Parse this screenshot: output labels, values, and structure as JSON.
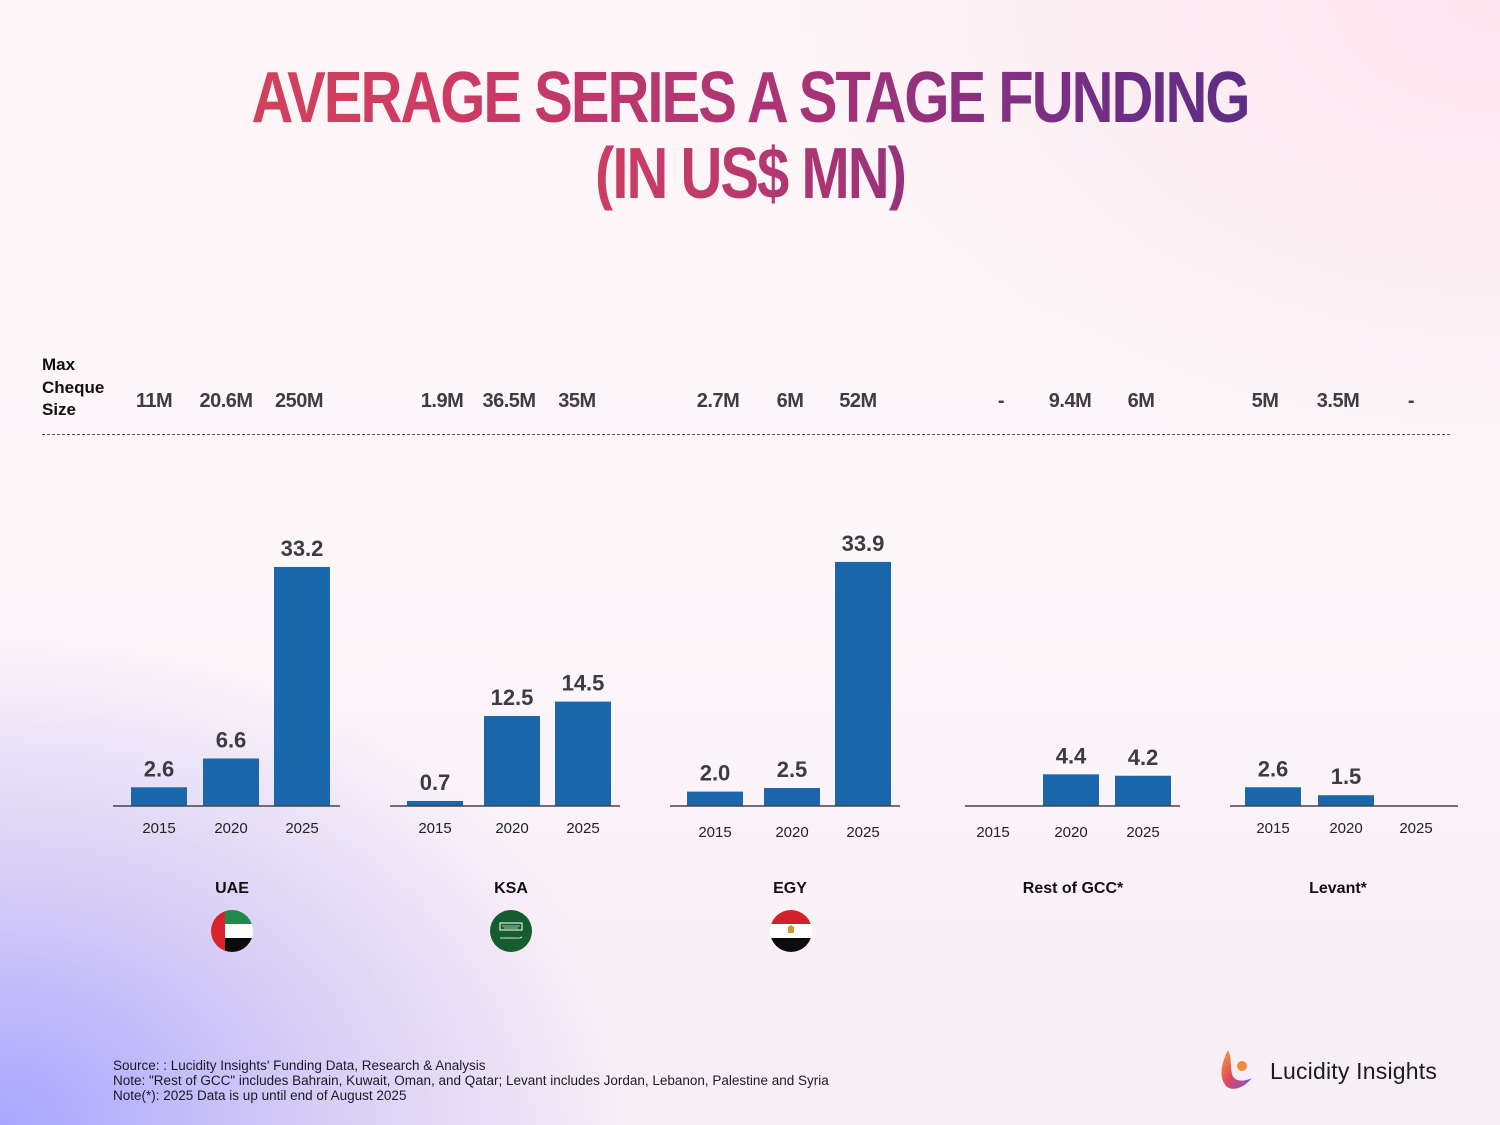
{
  "title": {
    "line1": "AVERAGE SERIES A STAGE FUNDING",
    "line2": "(IN US$ MN)"
  },
  "max_cheque": {
    "label_lines": [
      "Max",
      "Cheque",
      "Size"
    ],
    "groups": [
      {
        "region": "UAE",
        "values": [
          "11M",
          "20.6M",
          "250M"
        ]
      },
      {
        "region": "KSA",
        "values": [
          "1.9M",
          "36.5M",
          "35M"
        ]
      },
      {
        "region": "EGY",
        "values": [
          "2.7M",
          "6M",
          "52M"
        ]
      },
      {
        "region": "Rest of GCC*",
        "values": [
          "-",
          "9.4M",
          "6M"
        ]
      },
      {
        "region": "Levant*",
        "values": [
          "5M",
          "3.5M",
          "-"
        ]
      }
    ]
  },
  "chart_data": {
    "type": "bar",
    "title": "AVERAGE SERIES A STAGE FUNDING (IN US$ MN)",
    "xlabel": "",
    "ylabel": "US$ Mn",
    "ylim": [
      0,
      35
    ],
    "grid": false,
    "legend": "none",
    "bar_color": "#1b67ab",
    "categories": [
      "2015",
      "2020",
      "2025"
    ],
    "groups": [
      {
        "name": "UAE",
        "flag": "uae-flag-icon",
        "values": [
          2.6,
          6.6,
          33.2
        ],
        "labels": [
          "2.6",
          "6.6",
          "33.2"
        ]
      },
      {
        "name": "KSA",
        "flag": "ksa-flag-icon",
        "values": [
          0.7,
          12.5,
          14.5
        ],
        "labels": [
          "0.7",
          "12.5",
          "14.5"
        ]
      },
      {
        "name": "EGY",
        "flag": "egypt-flag-icon",
        "values": [
          2.0,
          2.5,
          33.9
        ],
        "labels": [
          "2.0",
          "2.5",
          "33.9"
        ]
      },
      {
        "name": "Rest of GCC*",
        "flag": null,
        "values": [
          null,
          4.4,
          4.2
        ],
        "labels": [
          "",
          "4.4",
          "4.2"
        ]
      },
      {
        "name": "Levant*",
        "flag": null,
        "values": [
          2.6,
          1.5,
          null
        ],
        "labels": [
          "2.6",
          "1.5",
          ""
        ]
      }
    ]
  },
  "footer": {
    "source": "Source: : Lucidity Insights' Funding Data, Research & Analysis",
    "note1": "Note: \"Rest of GCC\" includes Bahrain, Kuwait, Oman, and Qatar; Levant includes Jordan, Lebanon, Palestine and Syria",
    "note2": "Note(*): 2025 Data is up until end of August 2025"
  },
  "brand": {
    "name": "Lucidity Insights",
    "logo_icon": "lucidity-logo-icon"
  }
}
